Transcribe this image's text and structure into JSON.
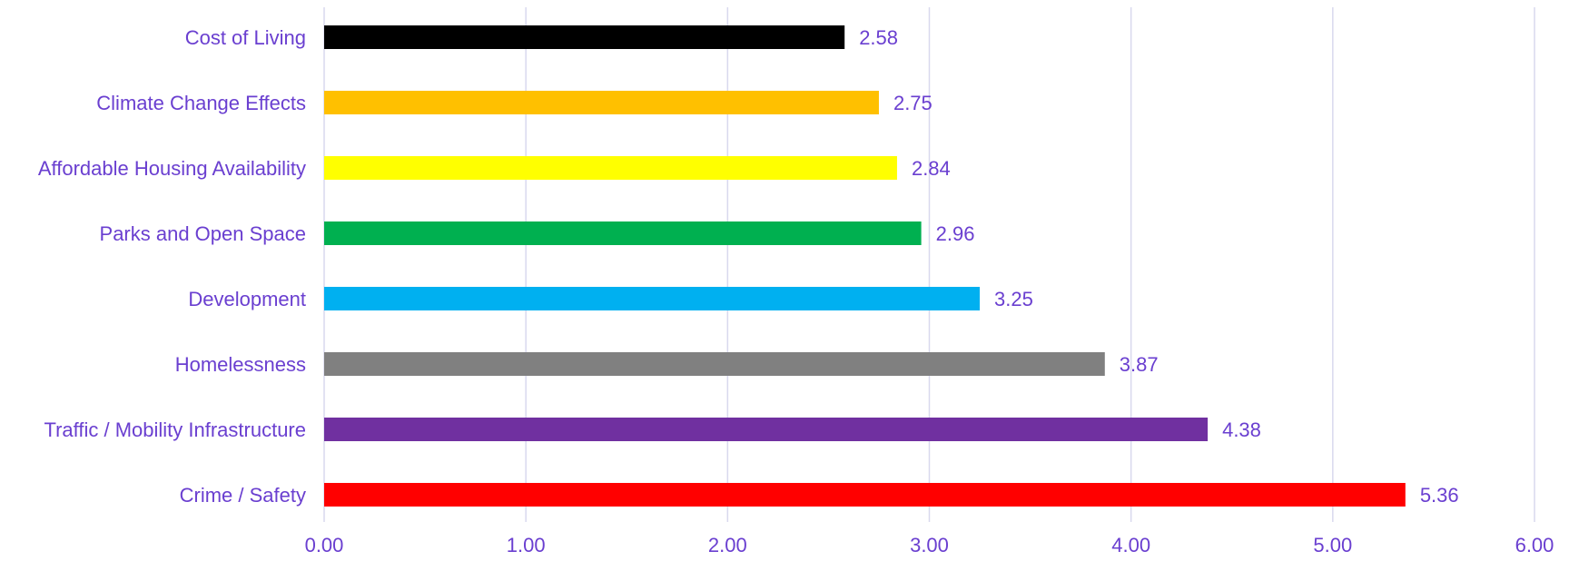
{
  "chart_data": {
    "type": "bar",
    "orientation": "horizontal",
    "title": "",
    "xlabel": "",
    "ylabel": "",
    "categories": [
      "Cost of Living",
      "Climate Change Effects",
      "Affordable Housing Availability",
      "Parks and Open Space",
      "Development",
      "Homelessness",
      "Traffic / Mobility Infrastructure",
      "Crime / Safety"
    ],
    "values": [
      2.58,
      2.75,
      2.84,
      2.96,
      3.25,
      3.87,
      4.38,
      5.36
    ],
    "value_labels": [
      "2.58",
      "2.75",
      "2.84",
      "2.96",
      "3.25",
      "3.87",
      "4.38",
      "5.36"
    ],
    "bar_colors": [
      "#000000",
      "#FFC000",
      "#FFFF00",
      "#00B050",
      "#00B0F0",
      "#808080",
      "#7030A0",
      "#FF0000"
    ],
    "xlim": [
      0,
      6
    ],
    "x_ticks": [
      0,
      1,
      2,
      3,
      4,
      5,
      6
    ],
    "x_tick_labels": [
      "0.00",
      "1.00",
      "2.00",
      "3.00",
      "4.00",
      "5.00",
      "6.00"
    ],
    "grid": "vertical",
    "legend": "none",
    "text_color": "#6A3FD0",
    "gridline_color": "#D9D9EE"
  }
}
